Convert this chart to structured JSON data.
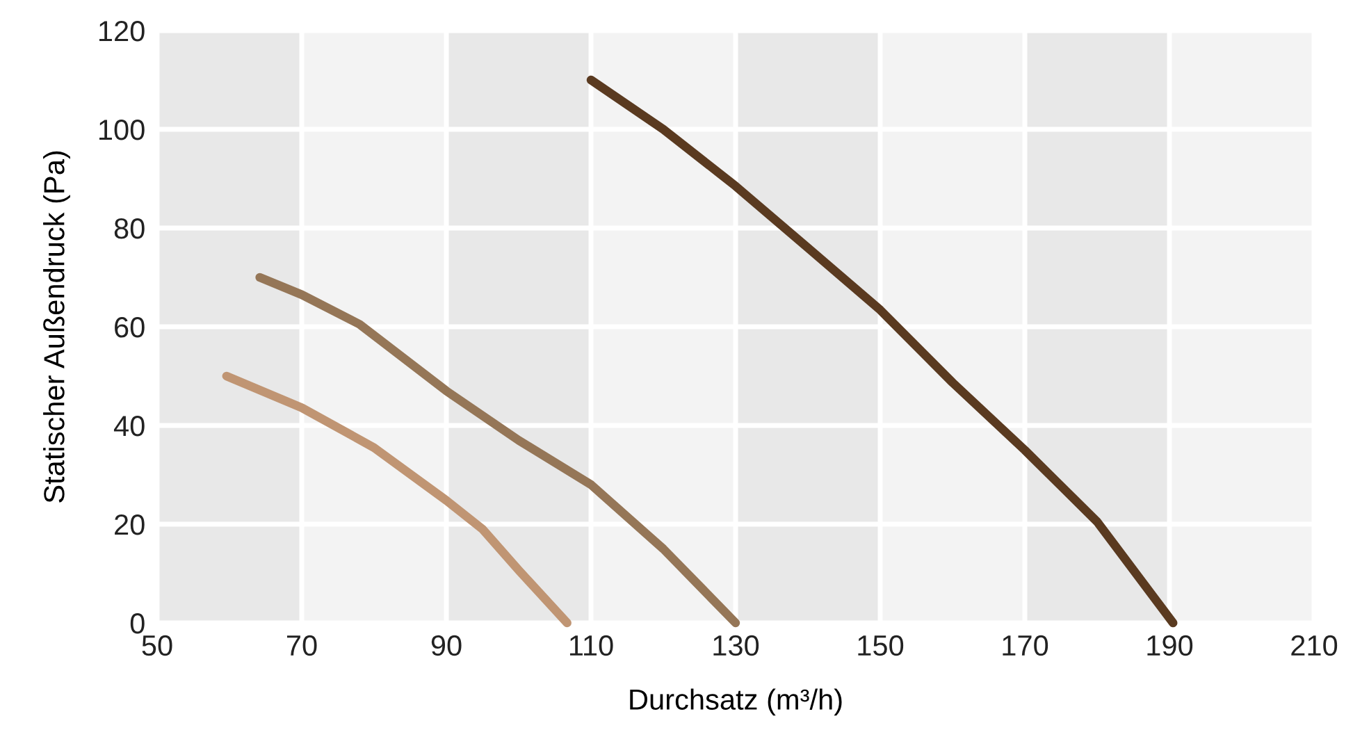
{
  "chart_data": {
    "type": "line",
    "xlabel": "Durchsatz (m³/h)",
    "ylabel": "Statischer Außendruck (Pa)",
    "xlim": [
      50,
      210
    ],
    "xticks": [
      50,
      70,
      90,
      110,
      130,
      150,
      170,
      190,
      210
    ],
    "ylim": [
      0,
      120
    ],
    "yticks": [
      0,
      20,
      40,
      60,
      80,
      100,
      120
    ],
    "grid": true,
    "line_style": "solid",
    "series": [
      {
        "color": "#c09573",
        "x": [
          59.6,
          70,
          80,
          90,
          95,
          100,
          106.7
        ],
        "values": [
          50,
          43.6,
          35.5,
          24.8,
          19,
          10.7,
          0
        ]
      },
      {
        "color": "#957657",
        "x": [
          64.2,
          70,
          78,
          90,
          100,
          110,
          120,
          130
        ],
        "values": [
          70,
          66.5,
          60.5,
          47,
          37,
          28,
          15,
          0
        ]
      },
      {
        "color": "#5a3a20",
        "x": [
          110,
          120,
          130,
          140,
          150,
          160,
          170,
          180,
          190.5
        ],
        "values": [
          110,
          100,
          88.5,
          76,
          63.4,
          48.7,
          35,
          20.5,
          0
        ]
      }
    ],
    "bands": [
      {
        "axis": "x",
        "from": 50,
        "to": 70,
        "color": "#e8e8e8"
      },
      {
        "axis": "x",
        "from": 70,
        "to": 90,
        "color": "#f3f3f3"
      },
      {
        "axis": "x",
        "from": 90,
        "to": 110,
        "color": "#e8e8e8"
      },
      {
        "axis": "x",
        "from": 110,
        "to": 130,
        "color": "#f3f3f3"
      },
      {
        "axis": "x",
        "from": 130,
        "to": 150,
        "color": "#e8e8e8"
      },
      {
        "axis": "x",
        "from": 150,
        "to": 170,
        "color": "#f3f3f3"
      },
      {
        "axis": "x",
        "from": 170,
        "to": 190,
        "color": "#e8e8e8"
      },
      {
        "axis": "x",
        "from": 190,
        "to": 210,
        "color": "#f3f3f3"
      }
    ]
  }
}
